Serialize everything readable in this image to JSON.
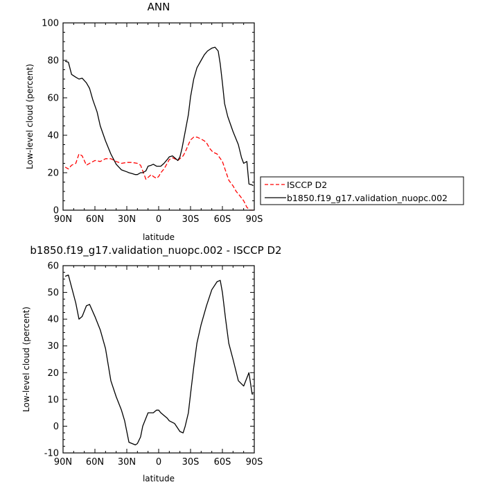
{
  "chart_data": [
    {
      "type": "line",
      "title": "ANN",
      "xlabel": "latitude",
      "ylabel": "Low-level cloud (percent)",
      "xlim": [
        90,
        -90
      ],
      "ylim": [
        0,
        100
      ],
      "x_tick_values": [
        90,
        60,
        30,
        0,
        -30,
        -60,
        -90
      ],
      "x_tick_labels": [
        "90N",
        "60N",
        "30N",
        "0",
        "30S",
        "60S",
        "90S"
      ],
      "y_ticks": [
        0,
        20,
        40,
        60,
        80,
        100
      ],
      "legend_position": "right",
      "series": [
        {
          "name": "ISCCP D2",
          "color": "#ff0000",
          "style": "dashed",
          "x": [
            88,
            85,
            82,
            78,
            75,
            72,
            68,
            65,
            60,
            55,
            50,
            45,
            40,
            35,
            30,
            25,
            20,
            17,
            15,
            12,
            10,
            7,
            5,
            2,
            0,
            -2,
            -5,
            -8,
            -10,
            -13,
            -15,
            -18,
            -20,
            -23,
            -25,
            -28,
            -30,
            -33,
            -36,
            -40,
            -43,
            -45,
            -48,
            -51,
            -55,
            -60,
            -63,
            -66,
            -70,
            -73,
            -76,
            -80,
            -83,
            -86,
            -89
          ],
          "y": [
            23,
            22,
            24,
            25,
            30,
            29,
            24,
            25,
            26.5,
            26,
            27.5,
            27.5,
            26,
            25,
            25.5,
            25.5,
            25,
            24,
            21,
            16.5,
            17.5,
            19,
            18,
            17,
            18,
            20,
            22,
            25,
            27,
            28,
            27.5,
            26.5,
            27.5,
            29,
            31,
            35,
            37.5,
            39,
            39,
            38,
            37,
            36,
            33,
            31,
            30,
            26,
            21,
            16,
            13,
            10,
            8,
            5,
            1.5,
            0,
            0
          ]
        },
        {
          "name": "b1850.f19_g17.validation_nuopc.002",
          "color": "#000000",
          "style": "solid",
          "x": [
            88,
            85,
            82,
            78,
            75,
            72,
            68,
            65,
            62,
            58,
            55,
            50,
            45,
            40,
            35,
            30,
            28,
            25,
            22,
            20,
            17,
            15,
            12,
            10,
            7,
            5,
            2,
            0,
            -2,
            -5,
            -8,
            -10,
            -13,
            -15,
            -18,
            -20,
            -22,
            -25,
            -28,
            -30,
            -33,
            -36,
            -40,
            -43,
            -46,
            -50,
            -53,
            -56,
            -58,
            -60,
            -62,
            -65,
            -70,
            -75,
            -78,
            -80,
            -83,
            -85,
            -88,
            -89
          ],
          "y": [
            79.5,
            79,
            72.5,
            71,
            70,
            70.5,
            68,
            65,
            59,
            52.5,
            45,
            37,
            30,
            24.5,
            21.5,
            20.5,
            20,
            19.5,
            19,
            19,
            20,
            20,
            21,
            23.5,
            24,
            24.5,
            23.5,
            23.5,
            23.5,
            25,
            27,
            28.5,
            29,
            28,
            26.5,
            28.5,
            33,
            42,
            51,
            60.5,
            70,
            76,
            80,
            83,
            85,
            86.5,
            87,
            85,
            78,
            68,
            57,
            50,
            42,
            35,
            28,
            25,
            26,
            14,
            13.5,
            13
          ]
        }
      ]
    },
    {
      "type": "line",
      "title": "b1850.f19_g17.validation_nuopc.002 - ISCCP D2",
      "xlabel": "latitude",
      "ylabel": "Low-level cloud (percent)",
      "xlim": [
        90,
        -90
      ],
      "ylim": [
        -10,
        60
      ],
      "x_tick_values": [
        90,
        60,
        30,
        0,
        -30,
        -60,
        -90
      ],
      "x_tick_labels": [
        "90N",
        "60N",
        "30N",
        "0",
        "30S",
        "60S",
        "90S"
      ],
      "y_ticks": [
        -10,
        0,
        10,
        20,
        30,
        40,
        50,
        60
      ],
      "series": [
        {
          "color": "#000000",
          "style": "solid",
          "x": [
            88,
            85,
            82,
            78,
            75,
            72,
            68,
            65,
            60,
            55,
            50,
            45,
            40,
            35,
            32,
            30,
            28,
            25,
            22,
            20,
            17,
            15,
            12,
            10,
            7,
            5,
            2,
            0,
            -2,
            -5,
            -8,
            -10,
            -15,
            -20,
            -23,
            -25,
            -28,
            -30,
            -33,
            -36,
            -40,
            -45,
            -50,
            -55,
            -58,
            -60,
            -63,
            -66,
            -70,
            -75,
            -80,
            -85,
            -88,
            -89
          ],
          "y": [
            56,
            56.5,
            52,
            46,
            40,
            41,
            45,
            45.5,
            41,
            36,
            29,
            17,
            11,
            6,
            2,
            -2,
            -6,
            -6.5,
            -7,
            -6.5,
            -4,
            0,
            3,
            5,
            5,
            5,
            6,
            6,
            5,
            4,
            3,
            2,
            1,
            -2,
            -2.5,
            0,
            5,
            12,
            22,
            31,
            38,
            45,
            51,
            54,
            54.5,
            50,
            40,
            31,
            25,
            17,
            15,
            20,
            12,
            12
          ]
        }
      ]
    }
  ]
}
